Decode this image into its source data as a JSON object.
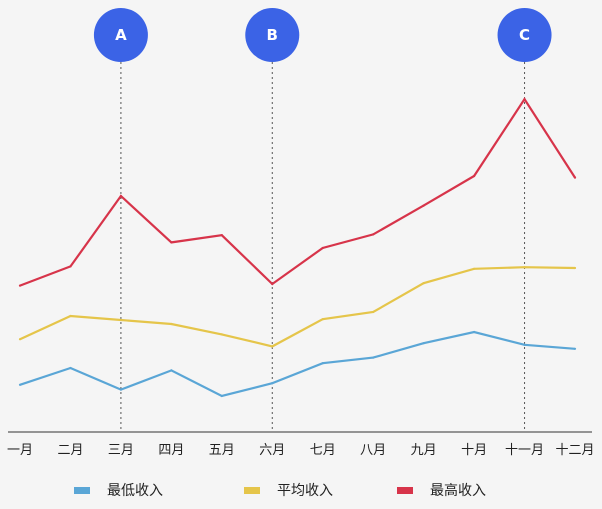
{
  "chart_data": {
    "type": "line",
    "categories": [
      "一月",
      "二月",
      "三月",
      "四月",
      "五月",
      "六月",
      "七月",
      "八月",
      "九月",
      "十月",
      "十一月",
      "十二月"
    ],
    "series": [
      {
        "name": "最低收入",
        "color": "#5aa6d6",
        "values": [
          59,
          80,
          53,
          77,
          45,
          61,
          86,
          93,
          111,
          125,
          109,
          104
        ]
      },
      {
        "name": "平均收入",
        "color": "#e5c54a",
        "values": [
          116,
          145,
          140,
          135,
          122,
          107,
          141,
          150,
          186,
          204,
          206,
          205
        ]
      },
      {
        "name": "最高收入",
        "color": "#d7344a",
        "values": [
          183,
          207,
          295,
          237,
          246,
          185,
          230,
          247,
          283,
          320,
          416,
          318
        ]
      }
    ],
    "markers": [
      {
        "label": "A",
        "category": "三月"
      },
      {
        "label": "B",
        "category": "六月"
      },
      {
        "label": "C",
        "category": "十一月"
      }
    ],
    "marker_color": "#3b63e6",
    "ylim": [
      0,
      450
    ],
    "grid": false,
    "legend_position": "bottom"
  }
}
